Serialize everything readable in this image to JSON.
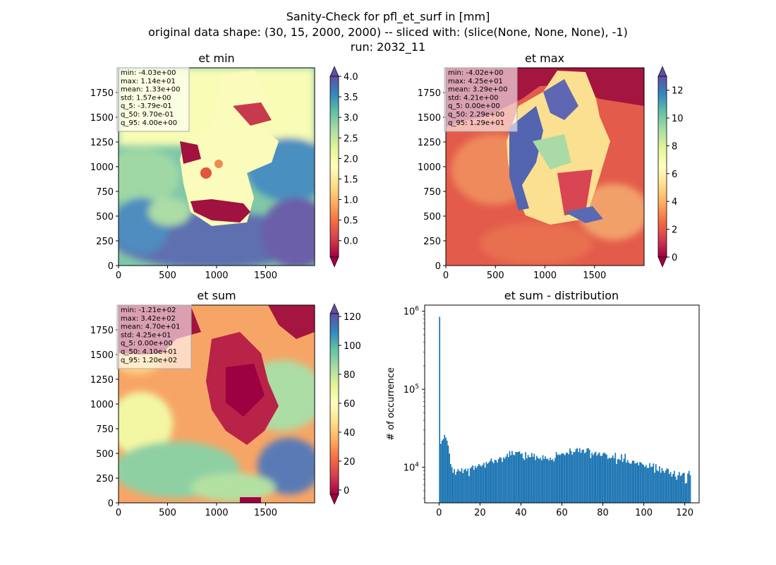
{
  "figure": {
    "title_lines": [
      "Sanity-Check for pfl_et_surf in [mm]",
      "original data shape: (30, 15, 2000, 2000) -- sliced with: (slice(None, None, None), -1)",
      "run: 2032_11"
    ]
  },
  "chart_data": [
    {
      "type": "heatmap",
      "title": "et min",
      "x_ticks": [
        "0",
        "500",
        "1000",
        "1500"
      ],
      "y_ticks": [
        "0",
        "250",
        "500",
        "750",
        "1000",
        "1250",
        "1500",
        "1750"
      ],
      "xlim": [
        0,
        2000
      ],
      "ylim": [
        0,
        2000
      ],
      "colormap": "Spectral",
      "colorbar": {
        "range": [
          -0.4,
          4.0
        ],
        "ticks": [
          "0.0",
          "0.5",
          "1.0",
          "1.5",
          "2.0",
          "2.5",
          "3.0",
          "3.5",
          "4.0"
        ],
        "extend": "both"
      },
      "stats": [
        "min: -4.03e+00",
        "max: 1.14e+01",
        "mean: 1.33e+00",
        "std: 1.57e+00",
        "q_5: -3.79e-01",
        "q_50: 9.70e-01",
        "q_95: 4.00e+00"
      ]
    },
    {
      "type": "heatmap",
      "title": "et max",
      "x_ticks": [
        "0",
        "500",
        "1000",
        "1500"
      ],
      "y_ticks": [
        "0",
        "250",
        "500",
        "750",
        "1000",
        "1250",
        "1500",
        "1750"
      ],
      "xlim": [
        0,
        2000
      ],
      "ylim": [
        0,
        2000
      ],
      "colormap": "Spectral",
      "colorbar": {
        "range": [
          0,
          13
        ],
        "ticks": [
          "0",
          "2",
          "4",
          "6",
          "8",
          "10",
          "12"
        ],
        "extend": "both"
      },
      "stats": [
        "min: -4.02e+00",
        "max: 4.25e+01",
        "mean: 3.29e+00",
        "std: 4.21e+00",
        "q_5: 0.00e+00",
        "q_50: 2.29e+00",
        "q_95: 1.29e+01"
      ]
    },
    {
      "type": "heatmap",
      "title": "et sum",
      "x_ticks": [
        "0",
        "500",
        "1000",
        "1500"
      ],
      "y_ticks": [
        "0",
        "250",
        "500",
        "750",
        "1000",
        "1250",
        "1500",
        "1750"
      ],
      "xlim": [
        0,
        2000
      ],
      "ylim": [
        0,
        2000
      ],
      "colormap": "Spectral",
      "colorbar": {
        "range": [
          -3,
          122
        ],
        "ticks": [
          "0",
          "20",
          "40",
          "60",
          "80",
          "100",
          "120"
        ],
        "extend": "both"
      },
      "stats": [
        "min: -1.21e+02",
        "max: 3.42e+02",
        "mean: 4.70e+01",
        "std: 4.25e+01",
        "q_5: 0.00e+00",
        "q_50: 4.10e+01",
        "q_95: 1.20e+02"
      ]
    },
    {
      "type": "bar",
      "title": "et sum - distribution",
      "ylabel": "# of occurrence",
      "xlabel": "",
      "yscale": "log",
      "xlim": [
        -7,
        127
      ],
      "ylim": [
        3500,
        1200000
      ],
      "x_ticks": [
        "0",
        "20",
        "40",
        "60",
        "80",
        "100",
        "120"
      ],
      "y_ticks": [
        "10^4",
        "10^5",
        "10^6"
      ],
      "bin_start": 0,
      "bin_width": 0.6,
      "color": "#1f77b4",
      "counts": [
        850000,
        20000,
        22000,
        23000,
        26000,
        24000,
        22000,
        19000,
        15000,
        11000,
        10000,
        8500,
        9500,
        8000,
        8800,
        9500,
        9000,
        8800,
        9700,
        8400,
        9300,
        9600,
        8900,
        9600,
        7700,
        9700,
        10100,
        10600,
        9300,
        10400,
        9800,
        10400,
        11000,
        10600,
        10200,
        10700,
        11400,
        9900,
        11700,
        11100,
        11500,
        12100,
        13000,
        11800,
        11300,
        12500,
        12300,
        11500,
        12800,
        13500,
        13200,
        11700,
        13400,
        12900,
        13700,
        14900,
        13500,
        16100,
        14300,
        16200,
        14500,
        14300,
        15700,
        15700,
        15700,
        16000,
        14800,
        15100,
        13100,
        12400,
        15700,
        13000,
        14400,
        13500,
        13500,
        15300,
        13600,
        14900,
        12400,
        14000,
        13200,
        12800,
        13200,
        12300,
        14300,
        12800,
        13800,
        12800,
        12900,
        12200,
        13300,
        12400,
        12700,
        11900,
        13200,
        15700,
        14400,
        14700,
        14300,
        14800,
        15200,
        14900,
        14300,
        15300,
        15400,
        14700,
        17500,
        16200,
        14500,
        15700,
        15700,
        17200,
        17600,
        15700,
        17600,
        15300,
        16700,
        16900,
        15200,
        15600,
        17500,
        17600,
        16800,
        13100,
        15300,
        14300,
        15200,
        15900,
        14100,
        14900,
        15500,
        14000,
        14000,
        15100,
        15500,
        14900,
        14500,
        12800,
        13300,
        13000,
        13300,
        14200,
        13000,
        15300,
        11000,
        12700,
        12800,
        12300,
        14700,
        11700,
        12900,
        14900,
        11500,
        12400,
        11500,
        11100,
        11200,
        12200,
        12100,
        11200,
        11300,
        11600,
        10600,
        11700,
        11500,
        11000,
        10700,
        10100,
        10700,
        9800,
        9800,
        11300,
        10100,
        10200,
        11200,
        8500,
        11000,
        9200,
        8900,
        10300,
        8500,
        9800,
        9000,
        8500,
        9100,
        9700,
        9500,
        8200,
        8700,
        7600,
        8200,
        9000,
        7600,
        6900,
        7900,
        8700,
        7700,
        8000,
        8400,
        8500,
        6200,
        6300,
        8300,
        9000,
        7900
      ]
    }
  ]
}
